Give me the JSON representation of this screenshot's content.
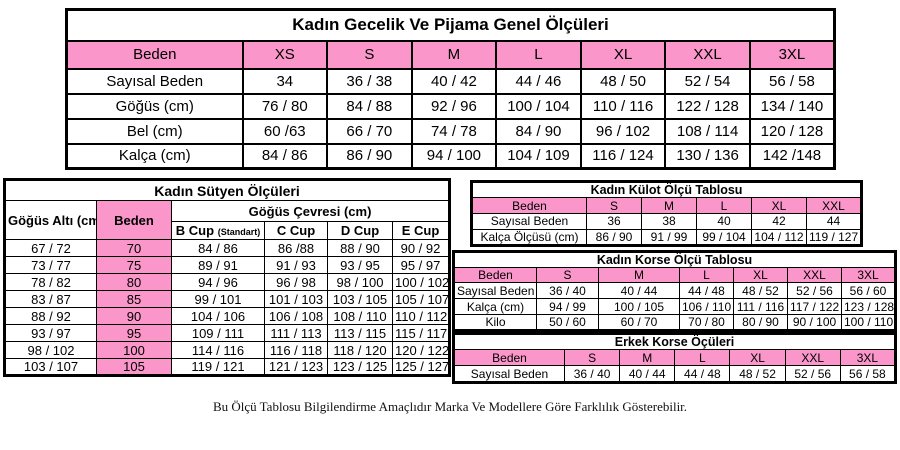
{
  "colors": {
    "pink": "#FA96C9",
    "border": "#000000",
    "background": "#FFFFFF"
  },
  "footer": "Bu Ölçü Tablosu Bilgilendirme Amaçlıdır Marka Ve Modellere Göre Farklılık Gösterebilir.",
  "tables": {
    "general": {
      "title": "Kadın Gecelik Ve Pijama Genel Ölçüleri",
      "header": [
        "Beden",
        "XS",
        "S",
        "M",
        "L",
        "XL",
        "XXL",
        "3XL"
      ],
      "rows": [
        [
          "Sayısal Beden",
          "34",
          "36 / 38",
          "40 / 42",
          "44 / 46",
          "48 / 50",
          "52 / 54",
          "56 / 58"
        ],
        [
          "Göğüs (cm)",
          "76 / 80",
          "84 / 88",
          "92 / 96",
          "100 / 104",
          "110 / 116",
          "122 / 128",
          "134 / 140"
        ],
        [
          "Bel (cm)",
          "60 /63",
          "66 / 70",
          "74 / 78",
          "84 / 90",
          "96 / 102",
          "108 / 114",
          "120 / 128"
        ],
        [
          "Kalça (cm)",
          "84 / 86",
          "86 / 90",
          "94 / 100",
          "104 / 109",
          "116 / 124",
          "130 / 136",
          "142 /148"
        ]
      ]
    },
    "bra": {
      "title": "Kadın Sütyen Ölçüleri",
      "corner_headers": [
        "Göğüs Altı (cm)",
        "Beden"
      ],
      "group_header": "Göğüs Çevresi (cm)",
      "cup_headers": [
        "B Cup",
        "C Cup",
        "D Cup",
        "E Cup"
      ],
      "b_cup_note": "(Standart)",
      "rows": [
        [
          "67 / 72",
          "70",
          "84 / 86",
          "86 /88",
          "88 / 90",
          "90 / 92"
        ],
        [
          "73 / 77",
          "75",
          "89 / 91",
          "91 / 93",
          "93 / 95",
          "95 / 97"
        ],
        [
          "78 / 82",
          "80",
          "94 / 96",
          "96 / 98",
          "98 / 100",
          "100 / 102"
        ],
        [
          "83 / 87",
          "85",
          "99 / 101",
          "101 / 103",
          "103 / 105",
          "105 / 107"
        ],
        [
          "88 / 92",
          "90",
          "104 / 106",
          "106 / 108",
          "108 / 110",
          "110 / 112"
        ],
        [
          "93 / 97",
          "95",
          "109 / 111",
          "111 / 113",
          "113 / 115",
          "115 / 117"
        ],
        [
          "98 / 102",
          "100",
          "114 / 116",
          "116 / 118",
          "118 / 120",
          "120 / 122"
        ],
        [
          "103 / 107",
          "105",
          "119 / 121",
          "121 / 123",
          "123 / 125",
          "125 / 127"
        ]
      ]
    },
    "panty": {
      "title": "Kadın Külot Ölçü Tablosu",
      "header": [
        "Beden",
        "S",
        "M",
        "L",
        "XL",
        "XXL"
      ],
      "rows": [
        [
          "Sayısal Beden",
          "36",
          "38",
          "40",
          "42",
          "44"
        ],
        [
          "Kalça Ölçüsü (cm)",
          "86 / 90",
          "91 / 99",
          "99 / 104",
          "104 / 112",
          "119 / 127"
        ]
      ]
    },
    "korse_women": {
      "title": "Kadın Korse Ölçü Tablosu",
      "header": [
        "Beden",
        "S",
        "M",
        "L",
        "XL",
        "XXL",
        "3XL"
      ],
      "rows": [
        [
          "Sayısal Beden",
          "36 / 40",
          "40 / 44",
          "44 / 48",
          "48 / 52",
          "52 / 56",
          "56 / 60"
        ],
        [
          "Kalça (cm)",
          "94 / 99",
          "100 / 105",
          "106 / 110",
          "111 / 116",
          "117 / 122",
          "123 / 128"
        ],
        [
          "Kilo",
          "50 / 60",
          "60 / 70",
          "70 / 80",
          "80 / 90",
          "90 / 100",
          "100 / 110"
        ]
      ]
    },
    "korse_men": {
      "title": "Erkek Korse Öçüleri",
      "header": [
        "Beden",
        "S",
        "M",
        "L",
        "XL",
        "XXL",
        "3XL"
      ],
      "rows": [
        [
          "Sayısal Beden",
          "36 / 40",
          "40 / 44",
          "44 / 48",
          "48 / 52",
          "52 / 56",
          "56 / 58"
        ]
      ]
    }
  }
}
